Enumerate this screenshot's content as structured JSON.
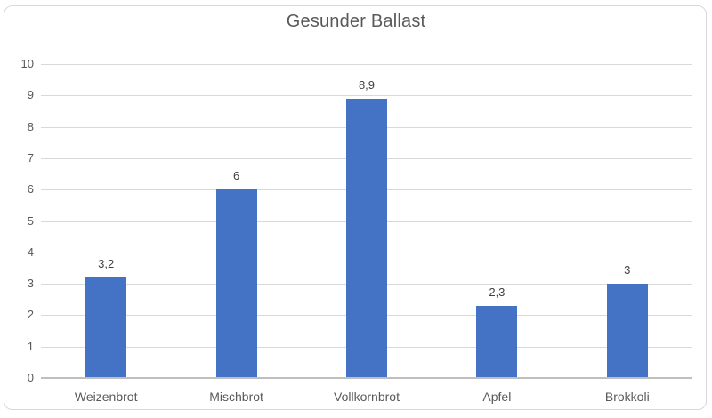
{
  "chart_data": {
    "type": "bar",
    "title": "Gesunder Ballast",
    "categories": [
      "Weizenbrot",
      "Mischbrot",
      "Vollkornbrot",
      "Apfel",
      "Brokkoli"
    ],
    "values": [
      3.2,
      6,
      8.9,
      2.3,
      3
    ],
    "value_labels": [
      "3,2",
      "6",
      "8,9",
      "2,3",
      "3"
    ],
    "xlabel": "",
    "ylabel": "",
    "ylim": [
      0,
      10
    ],
    "y_ticks": [
      0,
      1,
      2,
      3,
      4,
      5,
      6,
      7,
      8,
      9,
      10
    ],
    "grid": true,
    "legend": false,
    "colors": {
      "bar": "#4472C4",
      "gridline": "#D9D9D9",
      "axis_line": "#BFBFBF",
      "tick_text": "#595959",
      "value_label_text": "#404040",
      "title_text": "#595959",
      "frame_border": "#D9D9D9"
    }
  }
}
